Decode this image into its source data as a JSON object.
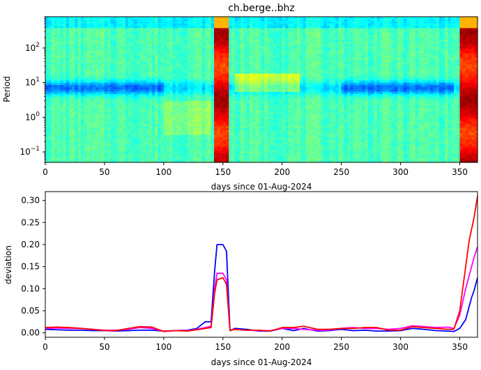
{
  "chart_data": [
    {
      "type": "heatmap",
      "title": "ch.berge..bhz",
      "xlabel": "days since 01-Aug-2024",
      "ylabel": "Period",
      "xlim": [
        0,
        365
      ],
      "ylim": [
        0.05,
        800
      ],
      "yscale": "log",
      "xticks": [
        0,
        50,
        100,
        150,
        200,
        250,
        300,
        350
      ],
      "yticks": [
        {
          "value": 0.1,
          "base": "10",
          "exp": "−1"
        },
        {
          "value": 1,
          "base": "10",
          "exp": "0"
        },
        {
          "value": 10,
          "base": "10",
          "exp": "1"
        },
        {
          "value": 100,
          "base": "10",
          "exp": "2"
        }
      ],
      "colormap": "jet",
      "events": [
        {
          "x_start": 143,
          "x_end": 156,
          "intensity": "high"
        },
        {
          "x_start": 350,
          "x_end": 365,
          "intensity": "high"
        }
      ],
      "background_level": 0.45,
      "low_band_period": [
        4,
        20
      ]
    },
    {
      "type": "line",
      "xlabel": "days since 01-Aug-2024",
      "ylabel": "deviation",
      "xlim": [
        0,
        365
      ],
      "ylim": [
        -0.01,
        0.32
      ],
      "xticks": [
        0,
        50,
        100,
        150,
        200,
        250,
        300,
        350
      ],
      "yticks": [
        "0.00",
        "0.05",
        "0.10",
        "0.15",
        "0.20",
        "0.25",
        "0.30"
      ],
      "series": [
        {
          "color": "#0000ff",
          "points": [
            [
              0,
              0.008
            ],
            [
              10,
              0.007
            ],
            [
              20,
              0.006
            ],
            [
              30,
              0.006
            ],
            [
              40,
              0.005
            ],
            [
              50,
              0.005
            ],
            [
              60,
              0.004
            ],
            [
              70,
              0.005
            ],
            [
              80,
              0.006
            ],
            [
              90,
              0.006
            ],
            [
              100,
              0.004
            ],
            [
              110,
              0.005
            ],
            [
              120,
              0.006
            ],
            [
              128,
              0.01
            ],
            [
              135,
              0.025
            ],
            [
              140,
              0.025
            ],
            [
              143,
              0.14
            ],
            [
              145,
              0.2
            ],
            [
              150,
              0.2
            ],
            [
              153,
              0.185
            ],
            [
              156,
              0.005
            ],
            [
              160,
              0.01
            ],
            [
              170,
              0.008
            ],
            [
              180,
              0.004
            ],
            [
              190,
              0.004
            ],
            [
              200,
              0.01
            ],
            [
              210,
              0.005
            ],
            [
              218,
              0.01
            ],
            [
              230,
              0.004
            ],
            [
              240,
              0.005
            ],
            [
              250,
              0.008
            ],
            [
              260,
              0.005
            ],
            [
              270,
              0.006
            ],
            [
              280,
              0.004
            ],
            [
              290,
              0.004
            ],
            [
              300,
              0.005
            ],
            [
              310,
              0.01
            ],
            [
              320,
              0.008
            ],
            [
              330,
              0.005
            ],
            [
              340,
              0.004
            ],
            [
              345,
              0.003
            ],
            [
              350,
              0.01
            ],
            [
              355,
              0.03
            ],
            [
              360,
              0.08
            ],
            [
              362,
              0.095
            ],
            [
              365,
              0.125
            ]
          ]
        },
        {
          "color": "#ff00ff",
          "points": [
            [
              0,
              0.01
            ],
            [
              10,
              0.011
            ],
            [
              20,
              0.01
            ],
            [
              30,
              0.01
            ],
            [
              40,
              0.008
            ],
            [
              50,
              0.006
            ],
            [
              60,
              0.006
            ],
            [
              70,
              0.008
            ],
            [
              80,
              0.012
            ],
            [
              90,
              0.01
            ],
            [
              100,
              0.004
            ],
            [
              110,
              0.005
            ],
            [
              120,
              0.005
            ],
            [
              128,
              0.008
            ],
            [
              135,
              0.012
            ],
            [
              140,
              0.015
            ],
            [
              143,
              0.1
            ],
            [
              145,
              0.135
            ],
            [
              150,
              0.135
            ],
            [
              153,
              0.12
            ],
            [
              156,
              0.006
            ],
            [
              160,
              0.008
            ],
            [
              170,
              0.006
            ],
            [
              180,
              0.005
            ],
            [
              190,
              0.005
            ],
            [
              200,
              0.01
            ],
            [
              210,
              0.01
            ],
            [
              218,
              0.008
            ],
            [
              230,
              0.006
            ],
            [
              240,
              0.006
            ],
            [
              250,
              0.01
            ],
            [
              260,
              0.012
            ],
            [
              270,
              0.01
            ],
            [
              280,
              0.01
            ],
            [
              290,
              0.008
            ],
            [
              300,
              0.01
            ],
            [
              310,
              0.016
            ],
            [
              320,
              0.014
            ],
            [
              330,
              0.012
            ],
            [
              340,
              0.013
            ],
            [
              345,
              0.01
            ],
            [
              350,
              0.04
            ],
            [
              355,
              0.1
            ],
            [
              360,
              0.15
            ],
            [
              362,
              0.17
            ],
            [
              365,
              0.195
            ]
          ]
        },
        {
          "color": "#ff0000",
          "points": [
            [
              0,
              0.012
            ],
            [
              10,
              0.013
            ],
            [
              20,
              0.012
            ],
            [
              30,
              0.01
            ],
            [
              40,
              0.008
            ],
            [
              50,
              0.005
            ],
            [
              60,
              0.005
            ],
            [
              70,
              0.01
            ],
            [
              80,
              0.014
            ],
            [
              90,
              0.013
            ],
            [
              100,
              0.003
            ],
            [
              110,
              0.005
            ],
            [
              120,
              0.004
            ],
            [
              128,
              0.007
            ],
            [
              135,
              0.01
            ],
            [
              140,
              0.012
            ],
            [
              143,
              0.09
            ],
            [
              145,
              0.12
            ],
            [
              150,
              0.125
            ],
            [
              153,
              0.11
            ],
            [
              156,
              0.005
            ],
            [
              160,
              0.008
            ],
            [
              170,
              0.006
            ],
            [
              180,
              0.006
            ],
            [
              190,
              0.004
            ],
            [
              200,
              0.012
            ],
            [
              210,
              0.012
            ],
            [
              218,
              0.015
            ],
            [
              230,
              0.008
            ],
            [
              240,
              0.008
            ],
            [
              250,
              0.01
            ],
            [
              260,
              0.01
            ],
            [
              270,
              0.012
            ],
            [
              280,
              0.012
            ],
            [
              290,
              0.006
            ],
            [
              300,
              0.006
            ],
            [
              310,
              0.014
            ],
            [
              320,
              0.012
            ],
            [
              330,
              0.01
            ],
            [
              340,
              0.008
            ],
            [
              345,
              0.008
            ],
            [
              350,
              0.05
            ],
            [
              355,
              0.15
            ],
            [
              358,
              0.21
            ],
            [
              362,
              0.26
            ],
            [
              365,
              0.31
            ]
          ]
        }
      ]
    }
  ]
}
